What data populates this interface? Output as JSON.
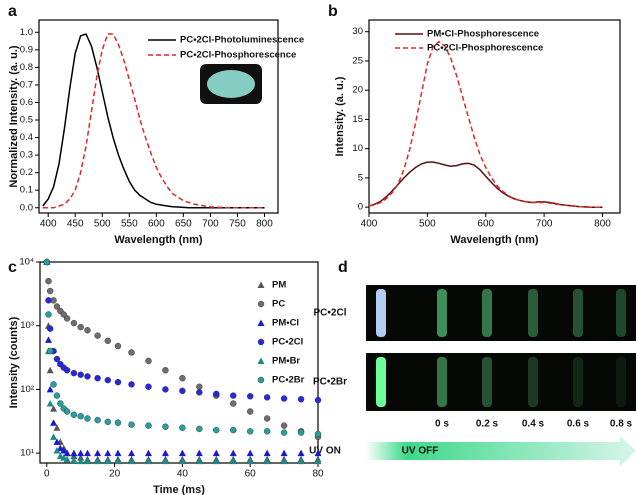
{
  "chart_data": [
    {
      "panel_label": "a",
      "type": "line",
      "xlabel": "Wavelength (nm)",
      "ylabel": "Normalized Intensity. (a. u.)",
      "x": [
        390,
        400,
        410,
        420,
        430,
        440,
        450,
        460,
        470,
        480,
        490,
        500,
        510,
        520,
        530,
        540,
        550,
        560,
        570,
        580,
        590,
        600,
        610,
        620,
        630,
        640,
        650,
        660,
        670,
        680,
        690,
        700,
        710,
        720,
        730,
        740,
        750,
        760,
        770,
        780,
        790,
        800
      ],
      "series": [
        {
          "name": "PC•2Cl-Photoluminescence",
          "color": "#000000",
          "linestyle": "solid",
          "values": [
            0.01,
            0.05,
            0.12,
            0.25,
            0.45,
            0.68,
            0.88,
            0.98,
            0.99,
            0.92,
            0.8,
            0.66,
            0.52,
            0.4,
            0.3,
            0.22,
            0.15,
            0.1,
            0.07,
            0.05,
            0.03,
            0.02,
            0.015,
            0.01,
            0.006,
            0.004,
            0.002,
            0,
            0,
            0,
            0,
            0,
            0,
            0,
            0,
            0,
            0,
            0,
            0,
            0,
            0,
            0
          ]
        },
        {
          "name": "PC•2Cl-Phosphorescence",
          "color": "#e02828",
          "linestyle": "dashed",
          "values": [
            0,
            0,
            0,
            0.01,
            0.02,
            0.05,
            0.1,
            0.2,
            0.35,
            0.55,
            0.75,
            0.9,
            0.99,
            0.99,
            0.93,
            0.84,
            0.73,
            0.62,
            0.5,
            0.4,
            0.31,
            0.23,
            0.17,
            0.12,
            0.08,
            0.06,
            0.04,
            0.03,
            0.02,
            0.015,
            0.01,
            0.005,
            0.003,
            0.002,
            0.001,
            0,
            0,
            0,
            0,
            0,
            0,
            0
          ]
        }
      ],
      "xlim": [
        383,
        825
      ],
      "ylim": [
        -0.03,
        1.07
      ],
      "xticks": [
        400,
        450,
        500,
        550,
        600,
        650,
        700,
        750,
        800
      ],
      "yticks": [
        {
          "value": 0,
          "label": "0.0"
        },
        {
          "value": 0.1,
          "label": "0.1"
        },
        {
          "value": 0.2,
          "label": "0.2"
        },
        {
          "value": 0.3,
          "label": "0.3"
        },
        {
          "value": 0.4,
          "label": "0.4"
        },
        {
          "value": 0.5,
          "label": "0.5"
        },
        {
          "value": 0.6,
          "label": "0.6"
        },
        {
          "value": 0.7,
          "label": "0.7"
        },
        {
          "value": 0.8,
          "label": "0.8"
        },
        {
          "value": 0.9,
          "label": "0.9"
        },
        {
          "value": 1,
          "label": "1.0"
        }
      ],
      "legend": "upper right"
    },
    {
      "panel_label": "b",
      "type": "line",
      "xlabel": "Wavelength (nm)",
      "ylabel": "Intensity. (a. u.)",
      "x": [
        400,
        410,
        420,
        430,
        440,
        450,
        460,
        470,
        480,
        490,
        500,
        510,
        520,
        530,
        540,
        550,
        560,
        570,
        580,
        590,
        600,
        610,
        620,
        630,
        640,
        650,
        660,
        670,
        680,
        690,
        700,
        710,
        720,
        730,
        740,
        750,
        760,
        770,
        780,
        790,
        800
      ],
      "series": [
        {
          "name": "PM•Cl-Phosphorescence",
          "color": "#5a1010",
          "linestyle": "solid",
          "values": [
            0.2,
            0.5,
            1,
            1.8,
            2.8,
            3.9,
            5,
            6,
            6.8,
            7.4,
            7.7,
            7.7,
            7.5,
            7.2,
            7,
            7.1,
            7.4,
            7.5,
            7.2,
            6.4,
            5.3,
            4.2,
            3.2,
            2.4,
            1.8,
            1.4,
            1.1,
            0.9,
            0.8,
            0.9,
            0.9,
            0.8,
            0.6,
            0.4,
            0.3,
            0.2,
            0.1,
            0.05,
            0,
            0,
            0
          ]
        },
        {
          "name": "PC•2Cl-Phosphorescence",
          "color": "#e02828",
          "linestyle": "dashed",
          "values": [
            0.2,
            0.4,
            0.8,
            1.5,
            2.5,
            4,
            6.5,
            10,
            14.5,
            19.5,
            24.5,
            27.5,
            28.3,
            27.5,
            25.5,
            22.5,
            19,
            15.5,
            12,
            9,
            6.8,
            5,
            3.6,
            2.6,
            1.9,
            1.4,
            1.1,
            0.9,
            0.8,
            0.8,
            0.8,
            0.7,
            0.5,
            0.4,
            0.3,
            0.2,
            0.1,
            0.05,
            0,
            0,
            0
          ]
        }
      ],
      "xlim": [
        400,
        830
      ],
      "ylim": [
        -1,
        32
      ],
      "xticks": [
        400,
        500,
        600,
        700,
        800
      ],
      "yticks": [
        0,
        5,
        10,
        15,
        20,
        25,
        30
      ],
      "legend": "upper right"
    },
    {
      "panel_label": "c",
      "type": "scatter",
      "xlabel": "Time (ms)",
      "ylabel": "Intensity (counts)",
      "yscale": "log",
      "x": [
        0,
        0.5,
        1,
        2,
        3,
        4,
        5,
        6,
        8,
        10,
        12,
        15,
        18,
        21,
        25,
        30,
        35,
        40,
        45,
        50,
        55,
        60,
        65,
        70,
        75,
        80
      ],
      "series": [
        {
          "name": "PM",
          "color": "#555555",
          "marker": "triangle",
          "values": [
            10000,
            1000,
            200,
            50,
            25,
            15,
            12,
            10,
            9,
            8.5,
            8,
            8,
            8,
            8,
            8,
            8,
            8,
            8,
            8,
            8,
            8,
            8,
            8,
            8,
            8,
            8
          ]
        },
        {
          "name": "PC",
          "color": "#6e6e6e",
          "marker": "circle",
          "values": [
            10000,
            5000,
            3500,
            2500,
            2000,
            1700,
            1500,
            1300,
            1100,
            950,
            850,
            700,
            580,
            480,
            380,
            280,
            200,
            150,
            110,
            80,
            60,
            45,
            35,
            27,
            22,
            18
          ]
        },
        {
          "name": "PM•Cl",
          "color": "#1a1ad0",
          "marker": "triangle",
          "values": [
            10000,
            600,
            100,
            30,
            15,
            12,
            11,
            10,
            10,
            10,
            10,
            10,
            10,
            10,
            10,
            10,
            10,
            10,
            10,
            10,
            10,
            10,
            10,
            10,
            10,
            10
          ]
        },
        {
          "name": "PC•2Cl",
          "color": "#2828e0",
          "marker": "circle",
          "values": [
            10000,
            2500,
            900,
            400,
            300,
            250,
            220,
            200,
            180,
            170,
            160,
            150,
            140,
            130,
            120,
            110,
            100,
            95,
            90,
            85,
            80,
            78,
            75,
            72,
            70,
            68
          ]
        },
        {
          "name": "PM•Br",
          "color": "#1a8a8a",
          "marker": "triangle",
          "values": [
            10000,
            400,
            60,
            18,
            11,
            9,
            8.5,
            8,
            7.8,
            7.5,
            7.5,
            7.5,
            7.5,
            7.5,
            7.5,
            7.5,
            7.5,
            7.5,
            7.5,
            7.5,
            7.5,
            7.5,
            7.5,
            7.5,
            7.5,
            7.5
          ]
        },
        {
          "name": "PC•2Br",
          "color": "#24a0a0",
          "marker": "circle",
          "values": [
            10000,
            1500,
            400,
            120,
            80,
            60,
            50,
            45,
            40,
            38,
            35,
            33,
            31,
            30,
            28,
            27,
            26,
            25,
            24,
            23,
            23,
            22,
            22,
            21,
            21,
            20
          ]
        }
      ],
      "xlim": [
        -2,
        80
      ],
      "ylim": [
        7,
        10000
      ],
      "xticks": [
        0,
        20,
        40,
        60,
        80
      ],
      "yticks": [
        {
          "value": 10,
          "label": "10¹"
        },
        {
          "value": 100,
          "label": "10²"
        },
        {
          "value": 1000,
          "label": "10³"
        },
        {
          "value": 10000,
          "label": "10⁴"
        }
      ],
      "legend": "upper right"
    }
  ],
  "panel_d": {
    "panel_label": "d",
    "rows": [
      "PC•2Cl",
      "PC•2Br"
    ],
    "times": [
      "0 s",
      "0.2 s",
      "0.4 s",
      "0.6 s",
      "0.8 s"
    ],
    "uv_on": "UV ON",
    "uv_off": "UV OFF"
  }
}
